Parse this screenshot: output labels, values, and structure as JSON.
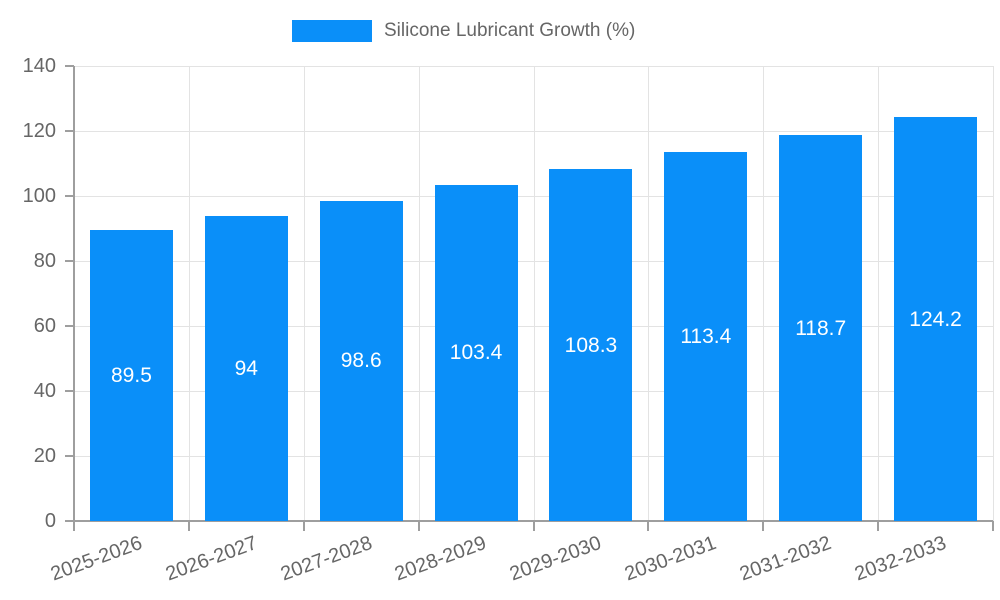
{
  "legend": {
    "label": "Silicone Lubricant Growth (%)"
  },
  "chart_data": {
    "type": "bar",
    "title": "Silicone Lubricant Growth (%)",
    "categories": [
      "2025-2026",
      "2026-2027",
      "2027-2028",
      "2028-2029",
      "2029-2030",
      "2030-2031",
      "2031-2032",
      "2032-2033"
    ],
    "series": [
      {
        "name": "Silicone Lubricant Growth (%)",
        "values": [
          89.5,
          94,
          98.6,
          103.4,
          108.3,
          113.4,
          118.7,
          124.2
        ]
      }
    ],
    "value_labels": [
      "89.5",
      "94",
      "98.6",
      "103.4",
      "108.3",
      "113.4",
      "118.7",
      "124.2"
    ],
    "xlabel": "",
    "ylabel": "",
    "ylim": [
      0,
      140
    ],
    "y_ticks": [
      0,
      20,
      40,
      60,
      80,
      100,
      120,
      140
    ],
    "grid": true,
    "legend_position": "top",
    "x_label_rotation_deg": -20,
    "colors": {
      "bar": "#0a8ff9",
      "grid": "#e3e3e3",
      "axis": "#9e9e9e",
      "tick_label": "#666666",
      "value_label": "#ffffff"
    }
  }
}
